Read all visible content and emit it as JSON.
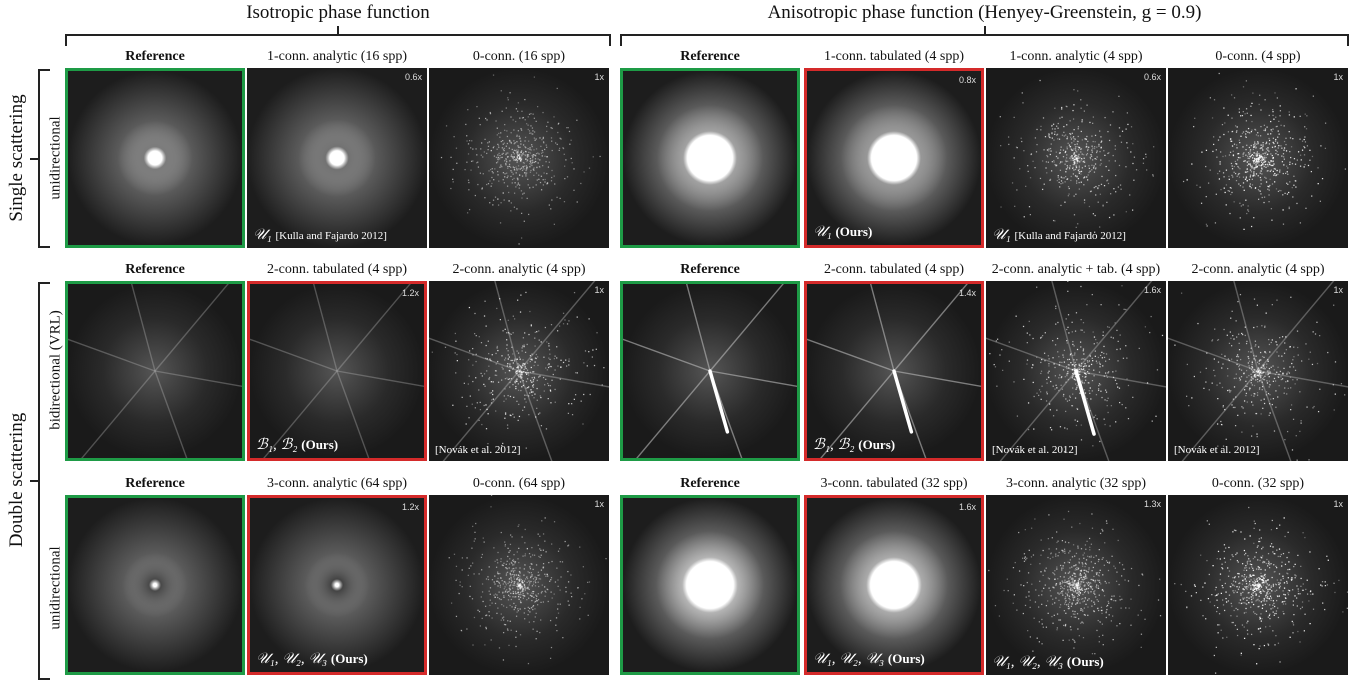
{
  "groups": {
    "isotropic": "Isotropic phase function",
    "anisotropic": "Anisotropic phase function (Henyey-Greenstein, g = 0.9)"
  },
  "rows": {
    "single": "Single scattering",
    "double": "Double scattering",
    "uni1": "unidirectional",
    "bi": "bidirectional (VRL)",
    "uni2": "unidirectional"
  },
  "labels": {
    "r1": [
      "Reference",
      "1-conn. analytic (16 spp)",
      "0-conn. (16 spp)",
      "Reference",
      "1-conn. tabulated (4 spp)",
      "1-conn. analytic (4 spp)",
      "0-conn. (4 spp)"
    ],
    "r2": [
      "Reference",
      "2-conn. tabulated (4 spp)",
      "2-conn. analytic (4 spp)",
      "Reference",
      "2-conn. tabulated (4 spp)",
      "2-conn. analytic + tab. (4 spp)",
      "2-conn. analytic (4 spp)"
    ],
    "r3": [
      "Reference",
      "3-conn. analytic (64 spp)",
      "0-conn. (64 spp)",
      "Reference",
      "3-conn. tabulated (32 spp)",
      "3-conn. analytic (32 spp)",
      "0-conn. (32 spp)"
    ]
  },
  "scales": {
    "r1": [
      "",
      "0.6x",
      "1x",
      "",
      "0.8x",
      "0.6x",
      "1x"
    ],
    "r2": [
      "",
      "1.2x",
      "1x",
      "",
      "1.4x",
      "1.6x",
      "1x"
    ],
    "r3": [
      "",
      "1.2x",
      "1x",
      "",
      "1.6x",
      "1.3x",
      "1x"
    ]
  },
  "captions": {
    "r1c1_sym": "𝒰₁",
    "r1c1_txt": "[Kulla and Fajardo 2012]",
    "r1c4_sym": "𝒰₁",
    "r1c4_txt": "(Ours)",
    "r1c5_sym": "𝒰₁",
    "r1c5_txt": "[Kulla and Fajardo 2012]",
    "r2c1_sym": "ℬ₁, ℬ₂",
    "r2c1_txt": "(Ours)",
    "r2c2_txt": "[Novák et al. 2012]",
    "r2c4_sym": "ℬ₁, ℬ₂",
    "r2c4_txt": "(Ours)",
    "r2c5_txt": "[Novák et al. 2012]",
    "r2c6_txt": "[Novák et al. 2012]",
    "r3c1_sym": "𝒰₁, 𝒰₂, 𝒰₃",
    "r3c1_txt": "(Ours)",
    "r3c4_sym": "𝒰₁, 𝒰₂, 𝒰₃",
    "r3c4_txt": "(Ours)",
    "r3c5_sym": "𝒰₁, 𝒰₂, 𝒰₃",
    "r3c5_txt": "(Ours)"
  },
  "colors": {
    "reference_frame": "#1e9b46",
    "ours_frame": "#d42a2a"
  }
}
